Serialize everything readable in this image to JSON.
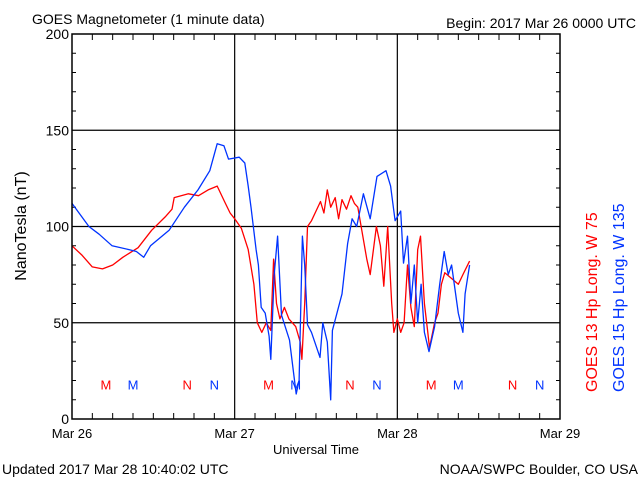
{
  "header": {
    "title": "GOES Magnetometer (1 minute data)",
    "begin": "Begin:  2017 Mar 26 0000 UTC"
  },
  "footer": {
    "updated": "Updated 2017 Mar 28 10:40:02 UTC",
    "credit": "NOAA/SWPC Boulder, CO USA"
  },
  "chart_data": {
    "type": "line",
    "title": "GOES Magnetometer (1 minute data)",
    "xlabel": "Universal Time",
    "ylabel": "NanoTesla (nT)",
    "ylim": [
      0,
      200
    ],
    "xlim": [
      "2017-03-26 00:00",
      "2017-03-29 00:00"
    ],
    "yticks": [
      "0",
      "50",
      "100",
      "150",
      "200"
    ],
    "xticks": [
      {
        "label": "Mar 26",
        "t": "2017-03-26 00:00"
      },
      {
        "label": "Mar 27",
        "t": "2017-03-27 00:00"
      },
      {
        "label": "Mar 28",
        "t": "2017-03-28 00:00"
      },
      {
        "label": "Mar 29",
        "t": "2017-03-29 00:00"
      }
    ],
    "grid": true,
    "legend_placement": "right (vertical text)",
    "series": [
      {
        "name": "GOES 13 Hp  Long. W 75",
        "color": "#ff0000",
        "points": [
          [
            "2017-03-26 00:00",
            90
          ],
          [
            "2017-03-26 01:30",
            85
          ],
          [
            "2017-03-26 03:00",
            79
          ],
          [
            "2017-03-26 04:30",
            78
          ],
          [
            "2017-03-26 06:00",
            80
          ],
          [
            "2017-03-26 07:30",
            84
          ],
          [
            "2017-03-26 09:45",
            89
          ],
          [
            "2017-03-26 11:45",
            98
          ],
          [
            "2017-03-26 13:45",
            105
          ],
          [
            "2017-03-26 14:45",
            109
          ],
          [
            "2017-03-26 15:05",
            115
          ],
          [
            "2017-03-26 17:10",
            117
          ],
          [
            "2017-03-26 18:40",
            116
          ],
          [
            "2017-03-26 20:05",
            119
          ],
          [
            "2017-03-26 21:25",
            121
          ],
          [
            "2017-03-26 22:30",
            113
          ],
          [
            "2017-03-26 23:20",
            107
          ],
          [
            "2017-03-27 00:00",
            104
          ],
          [
            "2017-03-27 01:00",
            99
          ],
          [
            "2017-03-27 02:00",
            88
          ],
          [
            "2017-03-27 02:50",
            70
          ],
          [
            "2017-03-27 03:20",
            50
          ],
          [
            "2017-03-27 04:00",
            45
          ],
          [
            "2017-03-27 04:40",
            50
          ],
          [
            "2017-03-27 05:20",
            46
          ],
          [
            "2017-03-27 05:45",
            83
          ],
          [
            "2017-03-27 06:10",
            60
          ],
          [
            "2017-03-27 06:40",
            52
          ],
          [
            "2017-03-27 07:20",
            58
          ],
          [
            "2017-03-27 08:00",
            52
          ],
          [
            "2017-03-27 09:00",
            48
          ],
          [
            "2017-03-27 09:40",
            40
          ],
          [
            "2017-03-27 09:55",
            31
          ],
          [
            "2017-03-27 10:20",
            60
          ],
          [
            "2017-03-27 10:45",
            100
          ],
          [
            "2017-03-27 11:20",
            103
          ],
          [
            "2017-03-27 12:00",
            108
          ],
          [
            "2017-03-27 12:40",
            113
          ],
          [
            "2017-03-27 13:10",
            107
          ],
          [
            "2017-03-27 13:40",
            119
          ],
          [
            "2017-03-27 14:10",
            110
          ],
          [
            "2017-03-27 14:50",
            115
          ],
          [
            "2017-03-27 15:20",
            104
          ],
          [
            "2017-03-27 15:50",
            114
          ],
          [
            "2017-03-27 16:30",
            109
          ],
          [
            "2017-03-27 17:10",
            116
          ],
          [
            "2017-03-27 17:40",
            112
          ],
          [
            "2017-03-27 18:10",
            110
          ],
          [
            "2017-03-27 19:30",
            83
          ],
          [
            "2017-03-27 20:00",
            75
          ],
          [
            "2017-03-27 20:55",
            100
          ],
          [
            "2017-03-27 21:30",
            90
          ],
          [
            "2017-03-27 22:00",
            69
          ],
          [
            "2017-03-27 22:35",
            100
          ],
          [
            "2017-03-27 23:10",
            60
          ],
          [
            "2017-03-27 23:30",
            45
          ],
          [
            "2017-03-28 00:00",
            52
          ],
          [
            "2017-03-28 00:30",
            45
          ],
          [
            "2017-03-28 01:00",
            50
          ],
          [
            "2017-03-28 01:30",
            80
          ],
          [
            "2017-03-28 02:00",
            58
          ],
          [
            "2017-03-28 02:30",
            48
          ],
          [
            "2017-03-28 03:00",
            88
          ],
          [
            "2017-03-28 03:25",
            95
          ],
          [
            "2017-03-28 04:00",
            60
          ],
          [
            "2017-03-28 04:30",
            45
          ],
          [
            "2017-03-28 04:45",
            37
          ],
          [
            "2017-03-28 05:30",
            50
          ],
          [
            "2017-03-28 06:00",
            55
          ],
          [
            "2017-03-28 06:30",
            70
          ],
          [
            "2017-03-28 07:00",
            76
          ],
          [
            "2017-03-28 08:00",
            73
          ],
          [
            "2017-03-28 09:00",
            70
          ],
          [
            "2017-03-28 09:40",
            75
          ],
          [
            "2017-03-28 10:40",
            82
          ]
        ],
        "markers": [
          [
            "M",
            "2017-03-26 05:00"
          ],
          [
            "N",
            "2017-03-26 17:00"
          ],
          [
            "M",
            "2017-03-27 05:00"
          ],
          [
            "N",
            "2017-03-27 17:00"
          ],
          [
            "M",
            "2017-03-28 05:00"
          ],
          [
            "N",
            "2017-03-28 17:00"
          ]
        ]
      },
      {
        "name": "GOES 15 Hp  Long. W 135",
        "color": "#0033ff",
        "points": [
          [
            "2017-03-26 00:00",
            112
          ],
          [
            "2017-03-26 02:30",
            100
          ],
          [
            "2017-03-26 04:00",
            96
          ],
          [
            "2017-03-26 05:55",
            90
          ],
          [
            "2017-03-26 08:25",
            88
          ],
          [
            "2017-03-26 09:30",
            87
          ],
          [
            "2017-03-26 10:35",
            84
          ],
          [
            "2017-03-26 11:35",
            90
          ],
          [
            "2017-03-26 14:20",
            98
          ],
          [
            "2017-03-26 16:35",
            110
          ],
          [
            "2017-03-26 18:35",
            119
          ],
          [
            "2017-03-26 20:20",
            129
          ],
          [
            "2017-03-26 21:25",
            143
          ],
          [
            "2017-03-26 22:25",
            142
          ],
          [
            "2017-03-26 23:05",
            135
          ],
          [
            "2017-03-27 00:40",
            136
          ],
          [
            "2017-03-27 01:30",
            133
          ],
          [
            "2017-03-27 02:00",
            121
          ],
          [
            "2017-03-27 02:25",
            110
          ],
          [
            "2017-03-27 03:10",
            88
          ],
          [
            "2017-03-27 03:30",
            80
          ],
          [
            "2017-03-27 03:55",
            58
          ],
          [
            "2017-03-27 04:30",
            55
          ],
          [
            "2017-03-27 05:05",
            43
          ],
          [
            "2017-03-27 05:20",
            31
          ],
          [
            "2017-03-27 05:50",
            75
          ],
          [
            "2017-03-27 06:20",
            95
          ],
          [
            "2017-03-27 06:55",
            54
          ],
          [
            "2017-03-27 08:05",
            41
          ],
          [
            "2017-03-27 09:05",
            13
          ],
          [
            "2017-03-27 09:30",
            20
          ],
          [
            "2017-03-27 10:00",
            95
          ],
          [
            "2017-03-27 10:20",
            80
          ],
          [
            "2017-03-27 10:45",
            49
          ],
          [
            "2017-03-27 11:20",
            45
          ],
          [
            "2017-03-27 12:35",
            32
          ],
          [
            "2017-03-27 13:00",
            50
          ],
          [
            "2017-03-27 13:40",
            40
          ],
          [
            "2017-03-27 14:10",
            10
          ],
          [
            "2017-03-27 14:25",
            46
          ],
          [
            "2017-03-27 15:50",
            65
          ],
          [
            "2017-03-27 16:40",
            91
          ],
          [
            "2017-03-27 17:20",
            104
          ],
          [
            "2017-03-27 18:00",
            100
          ],
          [
            "2017-03-27 19:00",
            117
          ],
          [
            "2017-03-27 20:00",
            104
          ],
          [
            "2017-03-27 21:00",
            126
          ],
          [
            "2017-03-27 22:20",
            129
          ],
          [
            "2017-03-27 23:00",
            121
          ],
          [
            "2017-03-27 23:40",
            103
          ],
          [
            "2017-03-28 00:30",
            108
          ],
          [
            "2017-03-28 00:55",
            81
          ],
          [
            "2017-03-28 01:30",
            95
          ],
          [
            "2017-03-28 02:00",
            60
          ],
          [
            "2017-03-28 02:30",
            80
          ],
          [
            "2017-03-28 03:00",
            50
          ],
          [
            "2017-03-28 03:30",
            70
          ],
          [
            "2017-03-28 04:00",
            45
          ],
          [
            "2017-03-28 04:40",
            35
          ],
          [
            "2017-03-28 05:30",
            48
          ],
          [
            "2017-03-28 06:15",
            70
          ],
          [
            "2017-03-28 06:55",
            87
          ],
          [
            "2017-03-28 07:30",
            75
          ],
          [
            "2017-03-28 08:00",
            80
          ],
          [
            "2017-03-28 09:00",
            55
          ],
          [
            "2017-03-28 09:40",
            45
          ],
          [
            "2017-03-28 10:00",
            65
          ],
          [
            "2017-03-28 10:40",
            80
          ]
        ],
        "markers": [
          [
            "M",
            "2017-03-26 09:00"
          ],
          [
            "N",
            "2017-03-26 21:00"
          ],
          [
            "M",
            "2017-03-27 09:00"
          ],
          [
            "N",
            "2017-03-27 21:00"
          ],
          [
            "M",
            "2017-03-28 09:00"
          ],
          [
            "N",
            "2017-03-28 21:00"
          ]
        ]
      }
    ]
  }
}
